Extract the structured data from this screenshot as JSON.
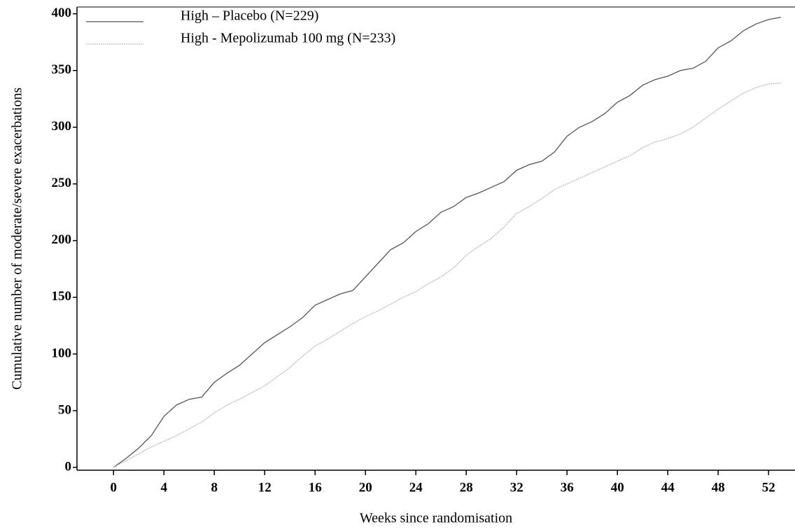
{
  "chart_data": {
    "type": "line",
    "x_label": "Weeks since randomisation",
    "y_label": "Cumulative number of moderate/severe exacerbations",
    "x": [
      0,
      1,
      2,
      3,
      4,
      5,
      6,
      7,
      8,
      9,
      10,
      11,
      12,
      13,
      14,
      15,
      16,
      17,
      18,
      19,
      20,
      21,
      22,
      23,
      24,
      25,
      26,
      27,
      28,
      29,
      30,
      31,
      32,
      33,
      34,
      35,
      36,
      37,
      38,
      39,
      40,
      41,
      42,
      43,
      44,
      45,
      46,
      47,
      48,
      49,
      50,
      51,
      52,
      53
    ],
    "series": [
      {
        "name": "High – Placebo (N=229)",
        "color": "#555555",
        "values": [
          0,
          8,
          17,
          28,
          45,
          55,
          60,
          62,
          75,
          83,
          90,
          100,
          110,
          117,
          124,
          132,
          143,
          148,
          153,
          156,
          168,
          180,
          192,
          198,
          208,
          215,
          225,
          230,
          238,
          242,
          247,
          252,
          262,
          267,
          270,
          278,
          292,
          300,
          305,
          312,
          322,
          328,
          337,
          342,
          345,
          350,
          352,
          358,
          370,
          376,
          385,
          391,
          395,
          397
        ]
      },
      {
        "name": "High - Mepolizumab 100 mg (N=233)",
        "color": "#bbbbbb",
        "values": [
          0,
          6,
          12,
          18,
          23,
          28,
          34,
          40,
          48,
          55,
          60,
          66,
          72,
          80,
          88,
          98,
          107,
          113,
          120,
          127,
          133,
          138,
          144,
          150,
          155,
          162,
          168,
          176,
          187,
          195,
          202,
          212,
          224,
          230,
          237,
          245,
          250,
          255,
          260,
          265,
          270,
          275,
          282,
          287,
          290,
          294,
          300,
          308,
          316,
          323,
          330,
          335,
          338,
          339
        ]
      }
    ],
    "xlim": [
      -2.9,
      54.1
    ],
    "ylim": [
      -2.5,
      406
    ],
    "xticks": [
      0,
      4,
      8,
      12,
      16,
      20,
      24,
      28,
      32,
      36,
      40,
      44,
      48,
      52
    ],
    "yticks": [
      0,
      50,
      100,
      150,
      200,
      250,
      300,
      350,
      400
    ],
    "legend": "top-left"
  }
}
